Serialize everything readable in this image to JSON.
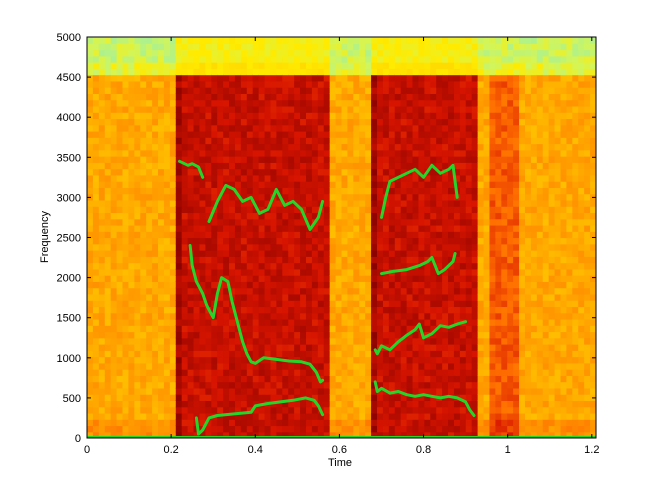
{
  "chart_data": {
    "type": "heatmap",
    "title": "",
    "xlabel": "Time",
    "ylabel": "Frequency",
    "xlim": [
      0,
      1.21
    ],
    "ylim": [
      0,
      5000
    ],
    "x_ticks": [
      "0",
      "0.2",
      "0.4",
      "0.6",
      "0.8",
      "1",
      "1.2"
    ],
    "y_ticks": [
      "0",
      "500",
      "1000",
      "1500",
      "2000",
      "2500",
      "3000",
      "3500",
      "4000",
      "4500",
      "5000"
    ],
    "grid": false,
    "legend": "none",
    "colormap": "autumn-to-cyan spectrogram",
    "colors": {
      "low": "#ffe600",
      "mid": "#ff9f00",
      "high": "#c80000",
      "very_high": "#8c0000",
      "top_band": "#a8f0a0",
      "track": "#22d62a",
      "axis": "#000000"
    },
    "speech_segments": [
      {
        "name": "segment-1",
        "x": [
          0.21,
          0.57
        ]
      },
      {
        "name": "segment-2",
        "x": [
          0.67,
          0.93
        ]
      }
    ],
    "series": [
      {
        "values": [
          [
            0.22,
            3450
          ],
          [
            0.24,
            3400
          ],
          [
            0.25,
            3420
          ],
          [
            0.265,
            3380
          ],
          [
            0.275,
            3250
          ]
        ]
      },
      {
        "values": [
          [
            0.29,
            2700
          ],
          [
            0.31,
            2950
          ],
          [
            0.33,
            3150
          ],
          [
            0.35,
            3100
          ],
          [
            0.37,
            2950
          ],
          [
            0.39,
            3000
          ],
          [
            0.41,
            2800
          ],
          [
            0.43,
            2850
          ],
          [
            0.45,
            3100
          ],
          [
            0.47,
            2900
          ],
          [
            0.49,
            2950
          ],
          [
            0.51,
            2850
          ],
          [
            0.53,
            2600
          ],
          [
            0.55,
            2750
          ],
          [
            0.56,
            2950
          ]
        ]
      },
      {
        "values": [
          [
            0.245,
            2400
          ],
          [
            0.25,
            2150
          ],
          [
            0.26,
            1950
          ],
          [
            0.275,
            1800
          ],
          [
            0.285,
            1650
          ],
          [
            0.3,
            1500
          ],
          [
            0.31,
            1800
          ],
          [
            0.32,
            2000
          ],
          [
            0.335,
            1950
          ],
          [
            0.345,
            1700
          ],
          [
            0.36,
            1400
          ],
          [
            0.37,
            1200
          ],
          [
            0.38,
            1050
          ],
          [
            0.39,
            950
          ],
          [
            0.4,
            930
          ],
          [
            0.42,
            1000
          ],
          [
            0.45,
            980
          ],
          [
            0.48,
            960
          ],
          [
            0.51,
            950
          ],
          [
            0.53,
            920
          ],
          [
            0.545,
            820
          ],
          [
            0.555,
            700
          ],
          [
            0.56,
            720
          ]
        ]
      },
      {
        "values": [
          [
            0.26,
            250
          ],
          [
            0.265,
            50
          ],
          [
            0.275,
            100
          ],
          [
            0.29,
            250
          ],
          [
            0.31,
            280
          ],
          [
            0.35,
            300
          ],
          [
            0.39,
            320
          ],
          [
            0.4,
            400
          ],
          [
            0.43,
            430
          ],
          [
            0.46,
            450
          ],
          [
            0.49,
            470
          ],
          [
            0.52,
            500
          ],
          [
            0.54,
            470
          ],
          [
            0.55,
            400
          ],
          [
            0.56,
            290
          ]
        ]
      },
      {
        "values": [
          [
            0.7,
            2750
          ],
          [
            0.71,
            3000
          ],
          [
            0.72,
            3200
          ],
          [
            0.74,
            3250
          ],
          [
            0.76,
            3300
          ],
          [
            0.78,
            3350
          ],
          [
            0.8,
            3250
          ],
          [
            0.82,
            3400
          ],
          [
            0.84,
            3300
          ],
          [
            0.86,
            3350
          ],
          [
            0.87,
            3400
          ],
          [
            0.875,
            3200
          ],
          [
            0.88,
            3000
          ]
        ]
      },
      {
        "values": [
          [
            0.7,
            2050
          ],
          [
            0.73,
            2080
          ],
          [
            0.76,
            2100
          ],
          [
            0.79,
            2150
          ],
          [
            0.81,
            2200
          ],
          [
            0.82,
            2250
          ],
          [
            0.835,
            2050
          ],
          [
            0.85,
            2100
          ],
          [
            0.87,
            2200
          ],
          [
            0.875,
            2300
          ]
        ]
      },
      {
        "values": [
          [
            0.685,
            1100
          ],
          [
            0.69,
            1050
          ],
          [
            0.7,
            1150
          ],
          [
            0.72,
            1100
          ],
          [
            0.74,
            1200
          ],
          [
            0.76,
            1280
          ],
          [
            0.78,
            1350
          ],
          [
            0.79,
            1420
          ],
          [
            0.8,
            1250
          ],
          [
            0.82,
            1300
          ],
          [
            0.84,
            1400
          ],
          [
            0.86,
            1380
          ],
          [
            0.88,
            1420
          ],
          [
            0.9,
            1450
          ]
        ]
      },
      {
        "values": [
          [
            0.685,
            700
          ],
          [
            0.69,
            580
          ],
          [
            0.7,
            620
          ],
          [
            0.72,
            560
          ],
          [
            0.74,
            580
          ],
          [
            0.76,
            540
          ],
          [
            0.78,
            520
          ],
          [
            0.8,
            540
          ],
          [
            0.82,
            520
          ],
          [
            0.84,
            500
          ],
          [
            0.86,
            520
          ],
          [
            0.88,
            500
          ],
          [
            0.9,
            450
          ],
          [
            0.91,
            350
          ],
          [
            0.92,
            280
          ]
        ]
      }
    ]
  }
}
